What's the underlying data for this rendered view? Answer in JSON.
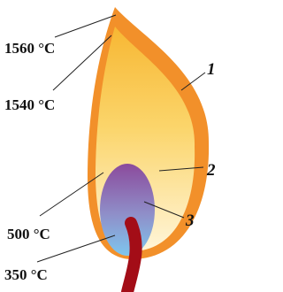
{
  "temperatures": [
    "1560 °C",
    "1540 °C",
    "500 °C",
    "350 °C"
  ],
  "zones": [
    "1",
    "2",
    "3"
  ]
}
